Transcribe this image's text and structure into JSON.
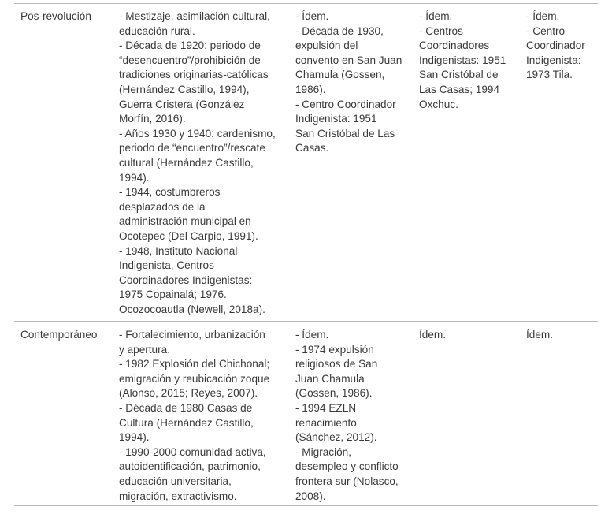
{
  "rows": [
    {
      "period": "Pos-revolución",
      "col1": [
        "- Mestizaje, asimilación cultural,",
        "educación rural.",
        "- Década de 1920: periodo de",
        "“desencuentro”/prohibición de",
        "tradiciones originarias-católicas",
        "(Hernández Castillo, 1994),",
        "Guerra Cristera (González",
        "Morfín, 2016).",
        "- Años 1930 y 1940: cardenismo,",
        "periodo de “encuentro”/rescate",
        "cultural (Hernández Castillo,",
        "1994).",
        "- 1944, costumbreros",
        "desplazados de la",
        "administración municipal en",
        "Ocotepec (Del Carpio, 1991).",
        "- 1948, Instituto Nacional",
        "Indigenista, Centros",
        "Coordinadores Indigenistas:",
        "1975 Copainalá; 1976.",
        "Ocozocoautla (Newell, 2018a)."
      ],
      "col2": [
        "- Ídem.",
        "- Década de 1930,",
        "expulsión del",
        "convento en San Juan",
        "Chamula (Gossen,",
        "1986).",
        "- Centro Coordinador",
        "Indigenista: 1951",
        "San Cristóbal de Las",
        "Casas."
      ],
      "col3": [
        "- Ídem.",
        "- Centros",
        "Coordinadores",
        "Indigenistas: 1951",
        "San Cristóbal de",
        "Las Casas; 1994",
        "Oxchuc."
      ],
      "col4": [
        "- Ídem.",
        "- Centro",
        "Coordinador",
        "Indigenista:",
        "1973 Tila."
      ]
    },
    {
      "period": "Contemporáneo",
      "col1": [
        "- Fortalecimiento, urbanización",
        "y apertura.",
        "- 1982 Explosión del Chichonal;",
        "emigración y reubicación zoque",
        "(Alonso, 2015; Reyes, 2007).",
        "- Década de 1980 Casas de",
        "Cultura (Hernández Castillo,",
        "1994).",
        "- 1990-2000 comunidad activa,",
        "autoidentificación, patrimonio,",
        "educación universitaria,",
        "migración, extractivismo."
      ],
      "col2": [
        "- Ídem.",
        "- 1974 expulsión",
        "religiosos de San",
        "Juan Chamula",
        "(Gossen, 1986).",
        "- 1994 EZLN",
        "renacimiento",
        "(Sánchez, 2012).",
        "- Migración,",
        "desempleo y conflicto",
        "frontera sur (Nolasco,",
        "2008)."
      ],
      "col3": [
        "Ídem."
      ],
      "col4": [
        "Ídem."
      ]
    }
  ]
}
